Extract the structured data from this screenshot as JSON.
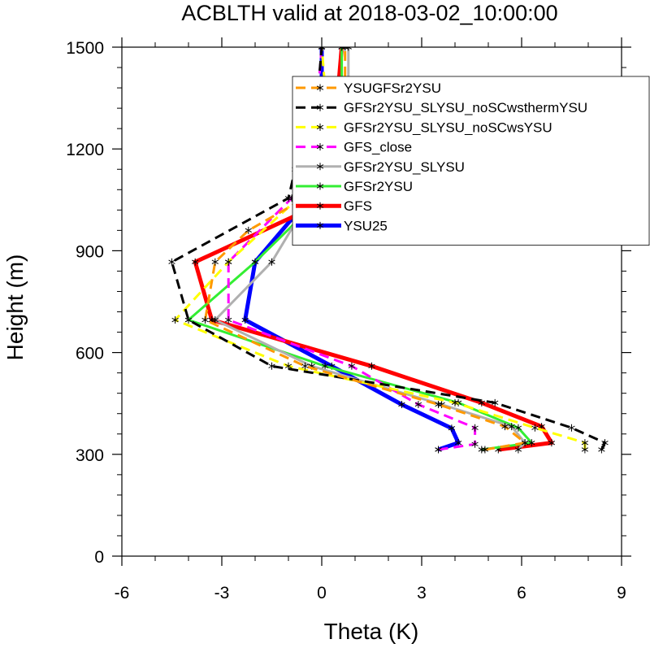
{
  "chart_data": {
    "type": "line",
    "title": "ACBLTH valid at 2018-03-02_10:00:00",
    "xlabel": "Theta (K)",
    "ylabel": "Height (m)",
    "xlim": [
      -6,
      9
    ],
    "ylim": [
      0,
      1500
    ],
    "xticks": [
      "-6",
      "-3",
      "0",
      "3",
      "6",
      "9"
    ],
    "yticks": [
      "0",
      "300",
      "600",
      "900",
      "1200",
      "1500"
    ],
    "legend_position": "top-right",
    "series": [
      {
        "name": "YSUGFSr2YSU",
        "color": "#ff9900",
        "dash": "dashed",
        "marker": "asterisk",
        "x": [
          4.9,
          6.1,
          5.5,
          3.5,
          -0.5,
          -3.5,
          -3.2,
          -2.2,
          -0.5,
          0.6,
          0.7,
          0.7
        ],
        "y": [
          314,
          334,
          382,
          447,
          560,
          696,
          867,
          960,
          1055,
          1140,
          1270,
          1500
        ]
      },
      {
        "name": "GFSr2YSU_SLYSU_noSCwsthermYSU",
        "color": "#000000",
        "dash": "dashed",
        "marker": "asterisk",
        "x": [
          8.4,
          8.5,
          7.5,
          5.2,
          -1.5,
          -4.0,
          -4.5,
          -1.0,
          -0.8,
          -0.2,
          0.0
        ],
        "y": [
          314,
          334,
          378,
          452,
          560,
          696,
          867,
          1055,
          1140,
          1270,
          1500
        ]
      },
      {
        "name": "GFSr2YSU_SLYSU_noSCwsYSU",
        "color": "#ffff00",
        "dash": "dashed",
        "marker": "asterisk",
        "x": [
          7.9,
          7.9,
          6.4,
          4.0,
          -1.0,
          -4.4,
          -2.8,
          -0.7,
          0.3,
          0.0
        ],
        "y": [
          314,
          334,
          378,
          452,
          560,
          696,
          867,
          1055,
          1140,
          1500
        ]
      },
      {
        "name": "GFS_close",
        "color": "#ff00ff",
        "dash": "dashed",
        "marker": "asterisk",
        "x": [
          3.5,
          4.6,
          4.6,
          2.9,
          0.9,
          -2.8,
          -2.8,
          -0.9,
          -0.3,
          0.0
        ],
        "y": [
          314,
          330,
          378,
          447,
          560,
          696,
          867,
          1055,
          1140,
          1500
        ]
      },
      {
        "name": "GFSr2YSU_SLYSU",
        "color": "#b0b0b0",
        "dash": "solid",
        "marker": "asterisk",
        "x": [
          5.9,
          6.1,
          5.7,
          3.6,
          -0.3,
          -3.2,
          -1.5,
          -0.5,
          0.4,
          0.8,
          0.8
        ],
        "y": [
          314,
          334,
          382,
          447,
          560,
          696,
          867,
          1030,
          1140,
          1270,
          1500
        ]
      },
      {
        "name": "GFSr2YSU",
        "color": "#33ee33",
        "dash": "solid",
        "marker": "asterisk",
        "x": [
          4.8,
          6.3,
          5.9,
          4.1,
          0.1,
          -4.0,
          -2.0,
          -0.3,
          0.6,
          0.6
        ],
        "y": [
          314,
          334,
          378,
          452,
          560,
          696,
          867,
          1030,
          1140,
          1500
        ]
      },
      {
        "name": "GFS",
        "color": "#ff0000",
        "dash": "solid",
        "marker": "asterisk",
        "x": [
          5.3,
          6.9,
          6.6,
          4.8,
          1.5,
          -3.3,
          -3.8,
          -0.2,
          0.2,
          0.4,
          0.6
        ],
        "y": [
          314,
          334,
          382,
          452,
          560,
          696,
          867,
          1030,
          1140,
          1270,
          1500
        ]
      },
      {
        "name": "YSU25",
        "color": "#0000ff",
        "dash": "solid",
        "marker": "asterisk",
        "x": [
          3.5,
          4.1,
          3.9,
          2.4,
          0.3,
          -2.3,
          -2.0,
          -0.5,
          -0.2,
          0.0,
          0.0
        ],
        "y": [
          314,
          334,
          377,
          447,
          560,
          696,
          867,
          1040,
          1140,
          1270,
          1500
        ]
      }
    ]
  }
}
